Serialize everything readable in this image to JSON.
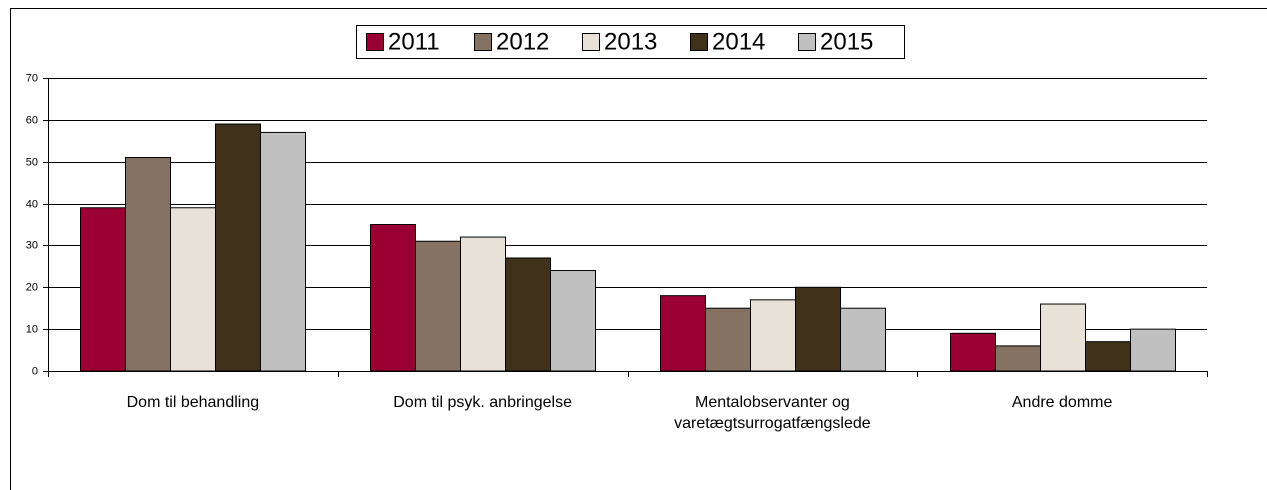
{
  "chart_data": {
    "type": "bar",
    "categories": [
      "Dom til behandling",
      "Dom til psyk. anbringelse",
      "Mentalobservanter og\nvaretægtsurrogatfængslede",
      "Andre domme"
    ],
    "series": [
      {
        "name": "2011",
        "color": "#9b0035",
        "values": [
          39,
          35,
          18,
          9
        ]
      },
      {
        "name": "2012",
        "color": "#867262",
        "values": [
          51,
          31,
          15,
          6
        ]
      },
      {
        "name": "2013",
        "color": "#e7e1d7",
        "values": [
          39,
          32,
          17,
          16
        ]
      },
      {
        "name": "2014",
        "color": "#40311b",
        "values": [
          59,
          27,
          20,
          7
        ]
      },
      {
        "name": "2015",
        "color": "#c0c0c0",
        "values": [
          57,
          24,
          15,
          10
        ]
      }
    ],
    "ylim": [
      0,
      70
    ],
    "yticks": [
      0,
      10,
      20,
      30,
      40,
      50,
      60,
      70
    ],
    "grid": true,
    "legend": "top"
  }
}
